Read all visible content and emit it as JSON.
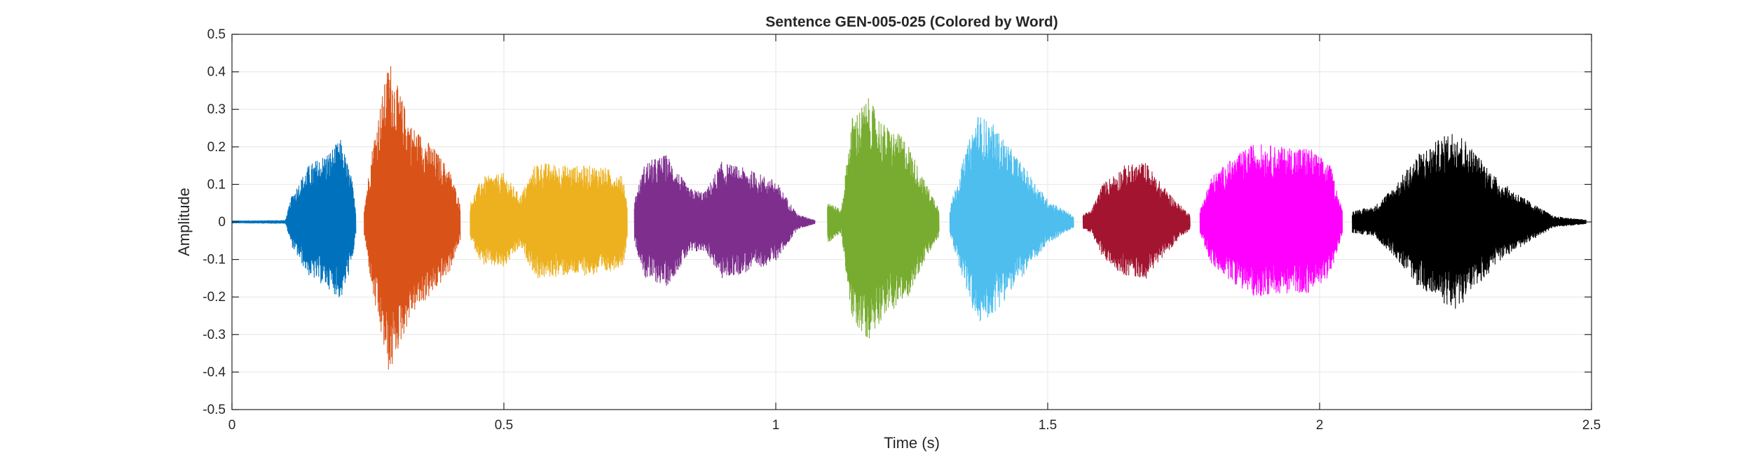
{
  "chart_data": {
    "type": "line",
    "title": "Sentence GEN-005-025 (Colored by Word)",
    "xlabel": "Time (s)",
    "ylabel": "Amplitude",
    "xlim": [
      0,
      2.5
    ],
    "ylim": [
      -0.5,
      0.5
    ],
    "x_ticks": [
      0,
      0.5,
      1,
      1.5,
      2,
      2.5
    ],
    "x_tick_labels": [
      "0",
      "0.5",
      "1",
      "1.5",
      "2",
      "2.5"
    ],
    "y_ticks": [
      0.5,
      0.4,
      0.3,
      0.2,
      0.1,
      0,
      -0.1,
      -0.2,
      -0.3,
      -0.4,
      -0.5
    ],
    "y_tick_labels": [
      "0.5",
      "0.4",
      "0.3",
      "0.2",
      "0.1",
      "0",
      "-0.1",
      "-0.2",
      "-0.3",
      "-0.4",
      "-0.5"
    ],
    "grid": true,
    "series": [
      {
        "color": "#0072BD",
        "start": 0.0,
        "end": 0.228,
        "envelope": [
          [
            0.0,
            0.003
          ],
          [
            0.098,
            0.004
          ],
          [
            0.11,
            0.07
          ],
          [
            0.14,
            0.15
          ],
          [
            0.18,
            0.19
          ],
          [
            0.2,
            0.22
          ],
          [
            0.22,
            0.12
          ],
          [
            0.228,
            0.03
          ]
        ]
      },
      {
        "color": "#D95319",
        "start": 0.243,
        "end": 0.42,
        "envelope": [
          [
            0.243,
            0.04
          ],
          [
            0.26,
            0.22
          ],
          [
            0.29,
            0.44
          ],
          [
            0.3,
            0.38
          ],
          [
            0.33,
            0.26
          ],
          [
            0.37,
            0.2
          ],
          [
            0.4,
            0.14
          ],
          [
            0.42,
            0.05
          ]
        ]
      },
      {
        "color": "#EDB120",
        "start": 0.438,
        "end": 0.727,
        "envelope": [
          [
            0.438,
            0.05
          ],
          [
            0.46,
            0.12
          ],
          [
            0.5,
            0.13
          ],
          [
            0.53,
            0.07
          ],
          [
            0.56,
            0.16
          ],
          [
            0.62,
            0.15
          ],
          [
            0.68,
            0.15
          ],
          [
            0.72,
            0.12
          ],
          [
            0.727,
            0.04
          ]
        ]
      },
      {
        "color": "#7E2F8E",
        "start": 0.74,
        "end": 1.072,
        "envelope": [
          [
            0.74,
            0.06
          ],
          [
            0.76,
            0.16
          ],
          [
            0.8,
            0.18
          ],
          [
            0.84,
            0.09
          ],
          [
            0.87,
            0.08
          ],
          [
            0.9,
            0.16
          ],
          [
            0.95,
            0.14
          ],
          [
            1.0,
            0.11
          ],
          [
            1.04,
            0.02
          ],
          [
            1.072,
            0.005
          ]
        ]
      },
      {
        "color": "#77AC30",
        "start": 1.095,
        "end": 1.3,
        "envelope": [
          [
            1.095,
            0.06
          ],
          [
            1.12,
            0.03
          ],
          [
            1.14,
            0.28
          ],
          [
            1.17,
            0.33
          ],
          [
            1.2,
            0.26
          ],
          [
            1.24,
            0.22
          ],
          [
            1.27,
            0.12
          ],
          [
            1.3,
            0.04
          ]
        ]
      },
      {
        "color": "#4DBEEE",
        "start": 1.32,
        "end": 1.548,
        "envelope": [
          [
            1.32,
            0.04
          ],
          [
            1.34,
            0.14
          ],
          [
            1.37,
            0.29
          ],
          [
            1.4,
            0.26
          ],
          [
            1.43,
            0.2
          ],
          [
            1.47,
            0.12
          ],
          [
            1.5,
            0.06
          ],
          [
            1.548,
            0.015
          ]
        ]
      },
      {
        "color": "#A2142F",
        "start": 1.565,
        "end": 1.762,
        "envelope": [
          [
            1.565,
            0.02
          ],
          [
            1.58,
            0.03
          ],
          [
            1.6,
            0.1
          ],
          [
            1.64,
            0.15
          ],
          [
            1.68,
            0.16
          ],
          [
            1.71,
            0.1
          ],
          [
            1.74,
            0.05
          ],
          [
            1.762,
            0.02
          ]
        ]
      },
      {
        "color": "#FF00FF",
        "start": 1.78,
        "end": 2.042,
        "envelope": [
          [
            1.78,
            0.03
          ],
          [
            1.8,
            0.12
          ],
          [
            1.84,
            0.17
          ],
          [
            1.88,
            0.21
          ],
          [
            1.93,
            0.2
          ],
          [
            1.98,
            0.2
          ],
          [
            2.02,
            0.15
          ],
          [
            2.042,
            0.03
          ]
        ]
      },
      {
        "color": "#000000",
        "start": 2.06,
        "end": 2.49,
        "envelope": [
          [
            2.06,
            0.03
          ],
          [
            2.1,
            0.04
          ],
          [
            2.14,
            0.1
          ],
          [
            2.18,
            0.18
          ],
          [
            2.22,
            0.22
          ],
          [
            2.25,
            0.25
          ],
          [
            2.29,
            0.18
          ],
          [
            2.33,
            0.11
          ],
          [
            2.38,
            0.06
          ],
          [
            2.43,
            0.015
          ],
          [
            2.49,
            0.005
          ]
        ]
      }
    ]
  }
}
